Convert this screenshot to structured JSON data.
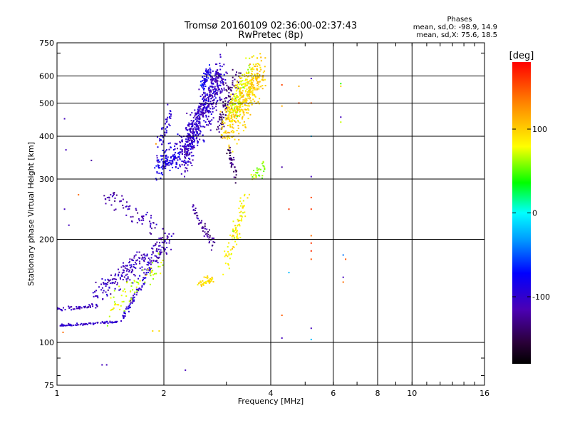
{
  "chart_data": {
    "type": "scatter",
    "title": "Tromsø 20160109 02:36:00-02:37:43",
    "subtitle": "RwPretec (8p)",
    "xlabel": "Frequency [MHz]",
    "ylabel": "Stationary phase Virtual Height [km]",
    "xscale": "log",
    "yscale": "log",
    "xlim": [
      1,
      16
    ],
    "ylim": [
      75,
      750
    ],
    "x_ticks": [
      1,
      2,
      4,
      6,
      8,
      10,
      16
    ],
    "x_tick_labels": [
      "1",
      "2",
      "4",
      "6",
      "8",
      "10",
      "16"
    ],
    "y_ticks": [
      75,
      100,
      200,
      300,
      400,
      500,
      600,
      750
    ],
    "y_tick_labels": [
      "75",
      "100",
      "200",
      "300",
      "400",
      "500",
      "600",
      "750"
    ],
    "grid": true,
    "stats": {
      "heading": "Phases",
      "line1": "mean, sd,O: -98.9, 14.9",
      "line2": "mean, sd,X:  75.6, 18.5"
    },
    "colorbar": {
      "label": "[deg]",
      "range": [
        -180,
        180
      ],
      "ticks": [
        100,
        0,
        -100
      ],
      "tick_labels": [
        "100",
        "0",
        "-100"
      ]
    },
    "clusters": [
      {
        "name": "low O trace",
        "x": [
          1.0,
          1.5
        ],
        "y": [
          112,
          115
        ],
        "phase": -105,
        "n": 70,
        "jitter": 0.006
      },
      {
        "name": "rising O trace",
        "x": [
          1.5,
          2.0
        ],
        "y": [
          115,
          190
        ],
        "phase": -100,
        "n": 90,
        "jitter": 0.02
      },
      {
        "name": "upper low trace",
        "x": [
          1.0,
          1.3
        ],
        "y": [
          125,
          128
        ],
        "phase": -110,
        "n": 50,
        "jitter": 0.01
      },
      {
        "name": "mid O band",
        "x": [
          1.25,
          2.1
        ],
        "y": [
          135,
          200
        ],
        "phase": -110,
        "n": 220,
        "jitter": 0.055
      },
      {
        "name": "high O band",
        "x": [
          1.35,
          1.95
        ],
        "y": [
          270,
          220
        ],
        "phase": -115,
        "n": 70,
        "jitter": 0.05
      },
      {
        "name": "X green cloud",
        "x": [
          1.4,
          1.95
        ],
        "y": [
          125,
          170
        ],
        "phase": 70,
        "n": 70,
        "jitter": 0.06
      },
      {
        "name": "F cusp lower",
        "x": [
          1.9,
          2.2
        ],
        "y": [
          330,
          350
        ],
        "phase": -90,
        "n": 130,
        "jitter": 0.06
      },
      {
        "name": "F cusp upper",
        "x": [
          1.95,
          2.1
        ],
        "y": [
          380,
          470
        ],
        "phase": -100,
        "n": 40,
        "jitter": 0.04
      },
      {
        "name": "F2 main",
        "x": [
          2.25,
          2.9
        ],
        "y": [
          350,
          600
        ],
        "phase": -105,
        "n": 600,
        "jitter": 0.09
      },
      {
        "name": "F2 top",
        "x": [
          2.55,
          2.7
        ],
        "y": [
          560,
          630
        ],
        "phase": -85,
        "n": 60,
        "jitter": 0.03
      },
      {
        "name": "F2 violet",
        "x": [
          2.85,
          3.2
        ],
        "y": [
          420,
          600
        ],
        "phase": -135,
        "n": 90,
        "jitter": 0.06
      },
      {
        "name": "X F2 yellow",
        "x": [
          3.0,
          3.75
        ],
        "y": [
          420,
          620
        ],
        "phase": 100,
        "n": 400,
        "jitter": 0.1
      },
      {
        "name": "X F2 mixed",
        "x": [
          3.1,
          3.55
        ],
        "y": [
          460,
          650
        ],
        "phase": 75,
        "n": 100,
        "jitter": 0.07
      },
      {
        "name": "violet mid",
        "x": [
          3.05,
          3.2
        ],
        "y": [
          360,
          300
        ],
        "phase": -135,
        "n": 40,
        "jitter": 0.03
      },
      {
        "name": "violet lower",
        "x": [
          2.4,
          2.75
        ],
        "y": [
          250,
          195
        ],
        "phase": -125,
        "n": 60,
        "jitter": 0.03
      },
      {
        "name": "X lower green",
        "x": [
          3.0,
          3.4
        ],
        "y": [
          170,
          260
        ],
        "phase": 85,
        "n": 90,
        "jitter": 0.05
      },
      {
        "name": "X 150 yellow",
        "x": [
          2.5,
          2.75
        ],
        "y": [
          150,
          153
        ],
        "phase": 95,
        "n": 40,
        "jitter": 0.02
      },
      {
        "name": "X 300 green",
        "x": [
          3.55,
          3.85
        ],
        "y": [
          300,
          325
        ],
        "phase": 60,
        "n": 30,
        "jitter": 0.03
      }
    ],
    "points": [
      {
        "x": 1.05,
        "y": 450,
        "phase": -110
      },
      {
        "x": 1.06,
        "y": 365,
        "phase": -110
      },
      {
        "x": 1.25,
        "y": 340,
        "phase": -120
      },
      {
        "x": 1.05,
        "y": 245,
        "phase": -110
      },
      {
        "x": 1.08,
        "y": 220,
        "phase": -110
      },
      {
        "x": 1.15,
        "y": 270,
        "phase": 140
      },
      {
        "x": 1.04,
        "y": 107,
        "phase": 140
      },
      {
        "x": 1.34,
        "y": 86,
        "phase": -110
      },
      {
        "x": 1.38,
        "y": 86,
        "phase": -110
      },
      {
        "x": 1.86,
        "y": 108,
        "phase": 95
      },
      {
        "x": 1.94,
        "y": 108,
        "phase": 95
      },
      {
        "x": 2.3,
        "y": 83,
        "phase": -110
      },
      {
        "x": 2.05,
        "y": 495,
        "phase": -100
      },
      {
        "x": 1.9,
        "y": 380,
        "phase": 125
      },
      {
        "x": 4.3,
        "y": 565,
        "phase": 155
      },
      {
        "x": 4.3,
        "y": 490,
        "phase": 115
      },
      {
        "x": 4.3,
        "y": 325,
        "phase": -120
      },
      {
        "x": 4.3,
        "y": 120,
        "phase": 145
      },
      {
        "x": 4.3,
        "y": 103,
        "phase": -110
      },
      {
        "x": 4.5,
        "y": 245,
        "phase": 160
      },
      {
        "x": 4.5,
        "y": 160,
        "phase": -20
      },
      {
        "x": 4.8,
        "y": 560,
        "phase": 115
      },
      {
        "x": 4.8,
        "y": 500,
        "phase": 155
      },
      {
        "x": 5.2,
        "y": 590,
        "phase": -110
      },
      {
        "x": 5.2,
        "y": 500,
        "phase": 150
      },
      {
        "x": 5.2,
        "y": 400,
        "phase": -20
      },
      {
        "x": 5.2,
        "y": 305,
        "phase": -110
      },
      {
        "x": 5.2,
        "y": 265,
        "phase": 155
      },
      {
        "x": 5.2,
        "y": 245,
        "phase": 160
      },
      {
        "x": 5.2,
        "y": 205,
        "phase": 140
      },
      {
        "x": 5.2,
        "y": 195,
        "phase": 160
      },
      {
        "x": 5.2,
        "y": 185,
        "phase": 165
      },
      {
        "x": 5.2,
        "y": 175,
        "phase": 150
      },
      {
        "x": 5.2,
        "y": 110,
        "phase": -110
      },
      {
        "x": 5.2,
        "y": 102,
        "phase": -20
      },
      {
        "x": 6.3,
        "y": 570,
        "phase": 40
      },
      {
        "x": 6.3,
        "y": 560,
        "phase": 100
      },
      {
        "x": 6.3,
        "y": 455,
        "phase": -110
      },
      {
        "x": 6.3,
        "y": 440,
        "phase": 70
      },
      {
        "x": 6.4,
        "y": 180,
        "phase": -40
      },
      {
        "x": 6.5,
        "y": 175,
        "phase": 150
      },
      {
        "x": 6.4,
        "y": 155,
        "phase": -110
      },
      {
        "x": 6.4,
        "y": 150,
        "phase": 140
      }
    ]
  }
}
